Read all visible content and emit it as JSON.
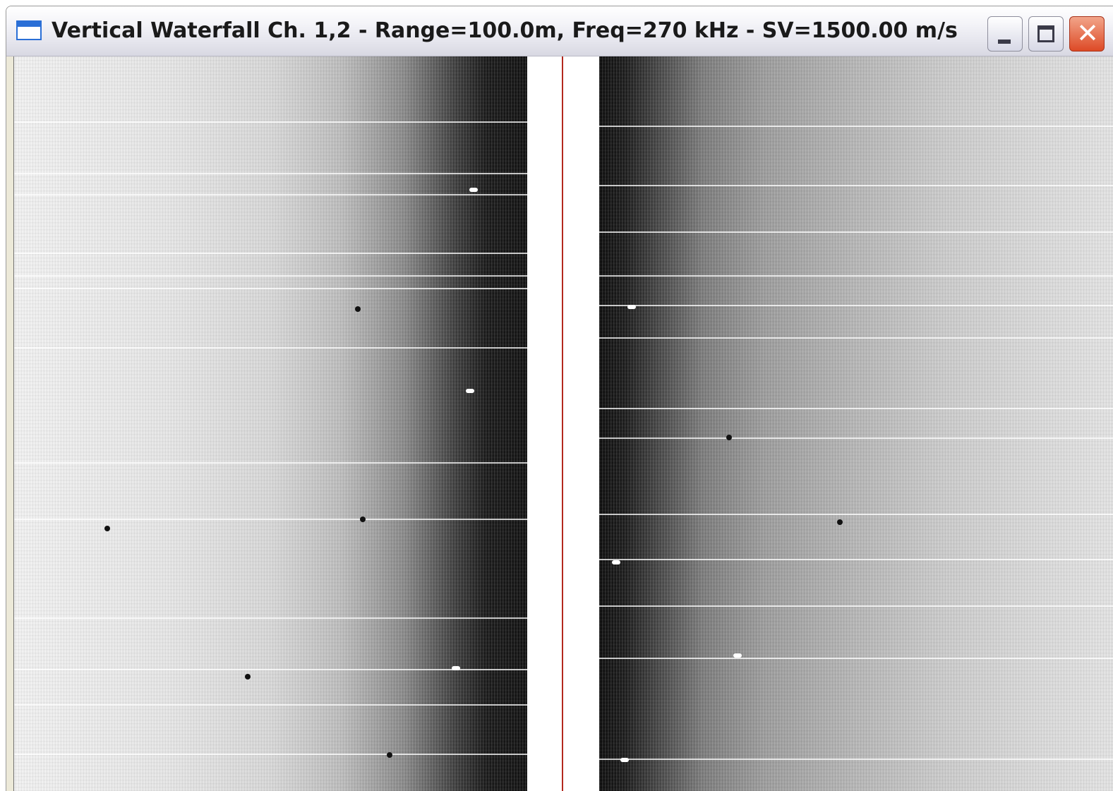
{
  "window": {
    "title": "Vertical Waterfall Ch. 1,2 - Range=100.0m, Freq=270 kHz - SV=1500.00 m/s",
    "icon": "window-icon",
    "buttons": {
      "minimize_icon": "minimize-icon",
      "maximize_icon": "maximize-icon",
      "close_icon": "close-icon",
      "close_glyph": "✕"
    }
  },
  "display": {
    "left_channel": "1",
    "right_channel": "2",
    "center_line_color": "#b3281e"
  }
}
